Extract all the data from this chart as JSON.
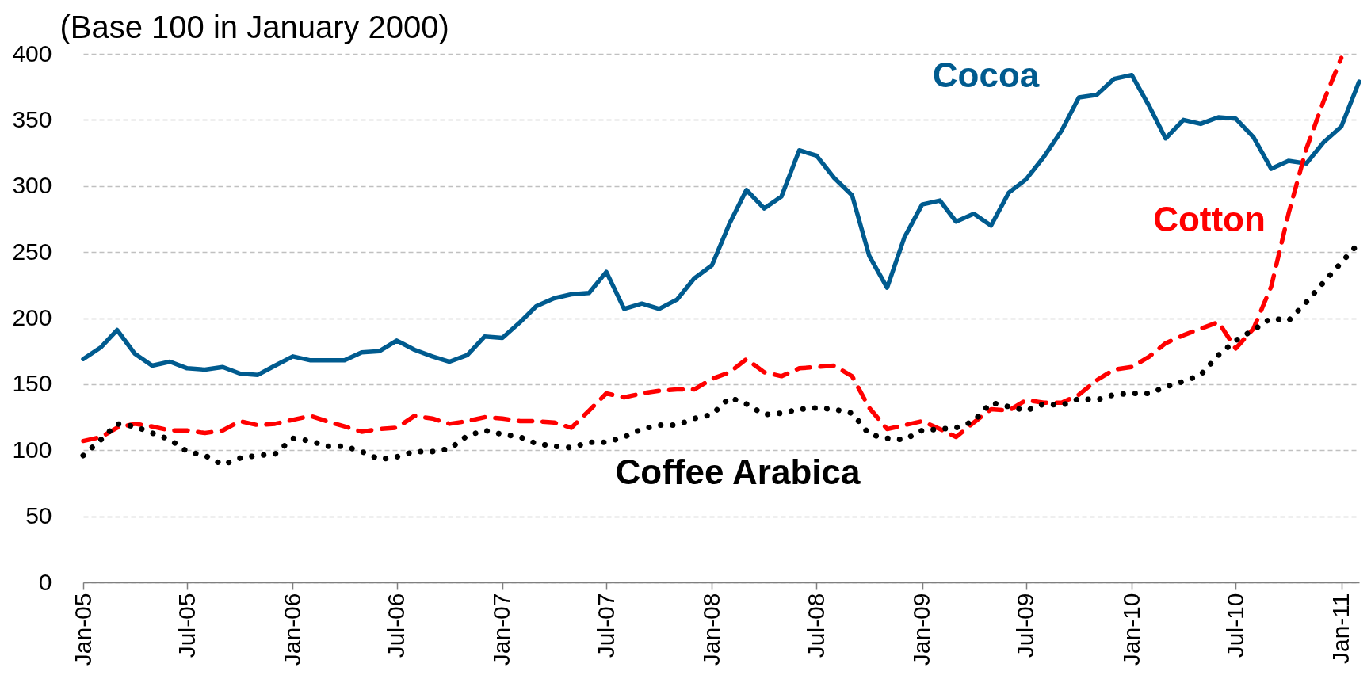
{
  "chart_data": {
    "type": "line",
    "ylabel": "(Base 100 in January 2000)",
    "x": [
      "2005-01",
      "2005-02",
      "2005-03",
      "2005-04",
      "2005-05",
      "2005-06",
      "2005-07",
      "2005-08",
      "2005-09",
      "2005-10",
      "2005-11",
      "2005-12",
      "2006-01",
      "2006-02",
      "2006-03",
      "2006-04",
      "2006-05",
      "2006-06",
      "2006-07",
      "2006-08",
      "2006-09",
      "2006-10",
      "2006-11",
      "2006-12",
      "2007-01",
      "2007-02",
      "2007-03",
      "2007-04",
      "2007-05",
      "2007-06",
      "2007-07",
      "2007-08",
      "2007-09",
      "2007-10",
      "2007-11",
      "2007-12",
      "2008-01",
      "2008-02",
      "2008-03",
      "2008-04",
      "2008-05",
      "2008-06",
      "2008-07",
      "2008-08",
      "2008-09",
      "2008-10",
      "2008-11",
      "2008-12",
      "2009-01",
      "2009-02",
      "2009-03",
      "2009-04",
      "2009-05",
      "2009-06",
      "2009-07",
      "2009-08",
      "2009-09",
      "2009-10",
      "2009-11",
      "2009-12",
      "2010-01",
      "2010-02",
      "2010-03",
      "2010-04",
      "2010-05",
      "2010-06",
      "2010-07",
      "2010-08",
      "2010-09",
      "2010-10",
      "2010-11",
      "2010-12",
      "2011-01",
      "2011-02"
    ],
    "series": [
      {
        "name": "Cocoa",
        "color": "#005b8f",
        "line_style": "solid",
        "values": [
          169,
          178,
          191,
          173,
          164,
          167,
          162,
          161,
          163,
          158,
          157,
          164,
          171,
          168,
          168,
          168,
          174,
          175,
          183,
          176,
          171,
          167,
          172,
          186,
          185,
          197,
          209,
          215,
          218,
          219,
          235,
          207,
          211,
          207,
          214,
          230,
          240,
          272,
          297,
          283,
          292,
          327,
          323,
          306,
          293,
          247,
          223,
          261,
          286,
          289,
          273,
          279,
          270,
          295,
          305,
          322,
          342,
          367,
          369,
          381,
          384,
          360,
          336,
          350,
          347,
          352,
          351,
          337,
          313,
          319,
          317,
          333,
          345,
          379
        ]
      },
      {
        "name": "Cotton",
        "color": "#ff0000",
        "line_style": "dashed",
        "values": [
          107,
          110,
          117,
          120,
          118,
          115,
          115,
          113,
          115,
          122,
          119,
          120,
          123,
          126,
          122,
          118,
          114,
          116,
          117,
          126,
          124,
          120,
          122,
          125,
          124,
          122,
          122,
          121,
          117,
          130,
          143,
          140,
          143,
          145,
          146,
          146,
          154,
          159,
          169,
          159,
          156,
          162,
          163,
          164,
          156,
          132,
          116,
          119,
          122,
          116,
          110,
          121,
          131,
          130,
          138,
          136,
          136,
          142,
          153,
          161,
          163,
          171,
          181,
          187,
          192,
          197,
          177,
          192,
          224,
          279,
          328,
          364,
          397,
          null
        ]
      },
      {
        "name": "Coffee Arabica",
        "color": "#000000",
        "line_style": "dotted",
        "values": [
          96,
          108,
          120,
          118,
          113,
          108,
          99,
          96,
          89,
          94,
          96,
          97,
          109,
          107,
          103,
          103,
          99,
          93,
          95,
          99,
          99,
          101,
          111,
          115,
          112,
          110,
          105,
          103,
          102,
          106,
          106,
          110,
          116,
          119,
          119,
          124,
          127,
          140,
          135,
          127,
          128,
          131,
          132,
          131,
          128,
          112,
          109,
          108,
          115,
          116,
          117,
          122,
          136,
          133,
          130,
          135,
          134,
          139,
          138,
          142,
          143,
          143,
          148,
          152,
          157,
          172,
          183,
          191,
          200,
          198,
          212,
          227,
          242,
          257
        ]
      }
    ],
    "xlim": [
      "2005-01",
      "2011-02"
    ],
    "xticks": [
      {
        "value": "2005-01",
        "label": "Jan-05"
      },
      {
        "value": "2005-07",
        "label": "Jul-05"
      },
      {
        "value": "2006-01",
        "label": "Jan-06"
      },
      {
        "value": "2006-07",
        "label": "Jul-06"
      },
      {
        "value": "2007-01",
        "label": "Jan-07"
      },
      {
        "value": "2007-07",
        "label": "Jul-07"
      },
      {
        "value": "2008-01",
        "label": "Jan-08"
      },
      {
        "value": "2008-07",
        "label": "Jul-08"
      },
      {
        "value": "2009-01",
        "label": "Jan-09"
      },
      {
        "value": "2009-07",
        "label": "Jul-09"
      },
      {
        "value": "2010-01",
        "label": "Jan-10"
      },
      {
        "value": "2010-07",
        "label": "Jul-10"
      },
      {
        "value": "2011-01",
        "label": "Jan-11"
      }
    ],
    "ylim": [
      0,
      400
    ],
    "yticks": [
      0,
      50,
      100,
      150,
      200,
      250,
      300,
      350,
      400
    ],
    "grid": "y"
  }
}
